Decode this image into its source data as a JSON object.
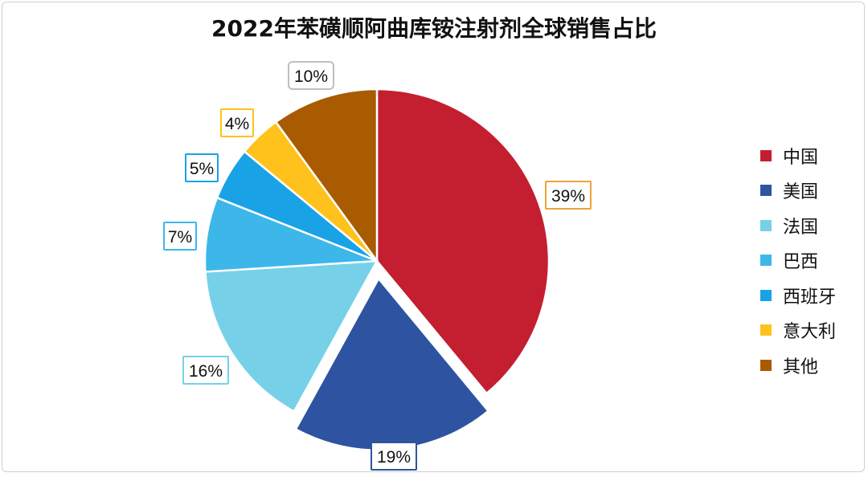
{
  "chart_data": {
    "type": "pie",
    "title": "2022年苯磺顺阿曲库铵注射剂全球销售占比",
    "unit": "%",
    "start_angle": "12 o'clock, clockwise",
    "exploded": "美国",
    "legend_position": "right",
    "slices": [
      {
        "label": "中国",
        "value": 39,
        "display": "39%",
        "color": "#C41E31",
        "label_border": "#F0A23C"
      },
      {
        "label": "美国",
        "value": 19,
        "display": "19%",
        "color": "#2E54A1",
        "label_border": "#2E54A1"
      },
      {
        "label": "法国",
        "value": 16,
        "display": "16%",
        "color": "#76D1E8",
        "label_border": "#76D1E8"
      },
      {
        "label": "巴西",
        "value": 7,
        "display": "7%",
        "color": "#3DB7EA",
        "label_border": "#3DB7EA"
      },
      {
        "label": "西班牙",
        "value": 5,
        "display": "5%",
        "color": "#19A3E6",
        "label_border": "#19A3E6"
      },
      {
        "label": "意大利",
        "value": 4,
        "display": "4%",
        "color": "#FFC21C",
        "label_border": "#FFC21C"
      },
      {
        "label": "其他",
        "value": 10,
        "display": "10%",
        "color": "#A85B00",
        "label_border": "#BFBFBF"
      }
    ]
  }
}
